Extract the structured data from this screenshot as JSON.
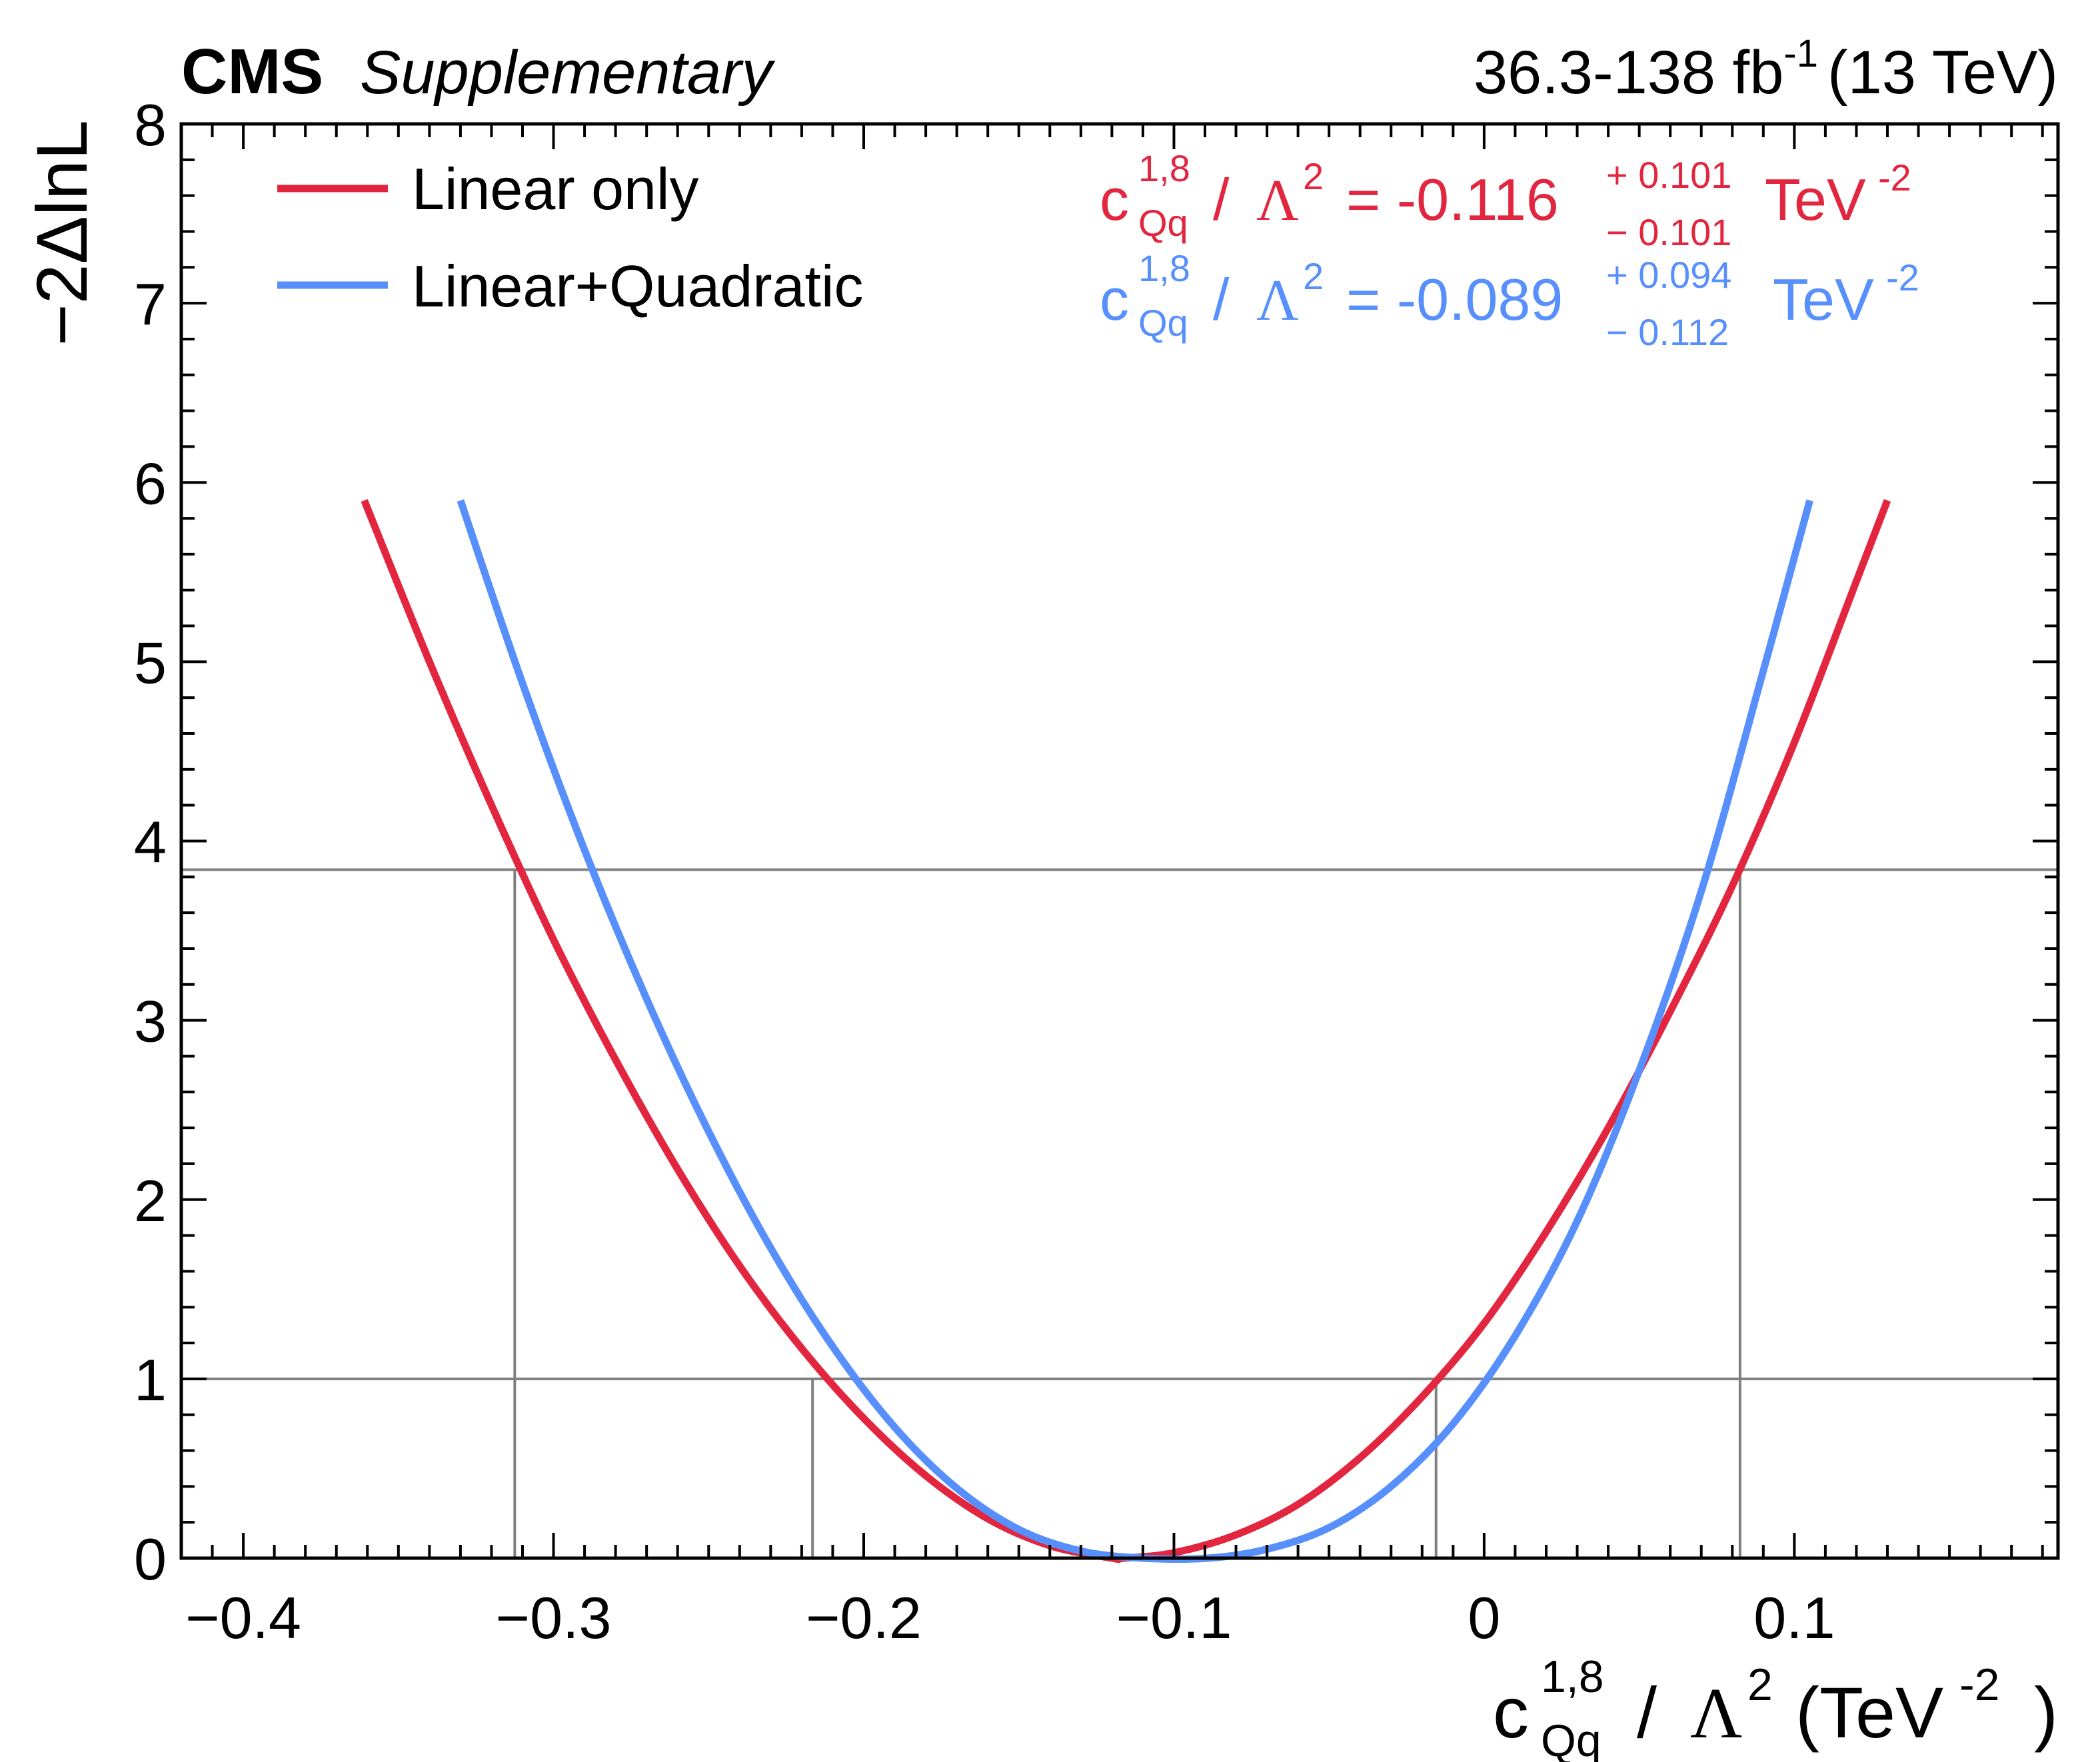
{
  "chart_data": {
    "type": "line",
    "header": {
      "experiment": "CMS",
      "tag": "Supplementary",
      "lumi_main": "36.3-138 fb",
      "lumi_exp": "-1",
      "energy": "(13 TeV)"
    },
    "ylabel": "−2ΔlnL",
    "xlabel": {
      "c": "c",
      "sup": "1,8",
      "sub": "Qq",
      "slash": "/",
      "lambda": "Λ",
      "lambda_exp": "2",
      "unit_open": "(TeV",
      "unit_exp": "-2",
      "unit_close": ")"
    },
    "xlim": [
      -0.42,
      0.185
    ],
    "ylim": [
      0,
      8
    ],
    "x_ticks": [
      {
        "v": -0.4,
        "label": "−0.4"
      },
      {
        "v": -0.3,
        "label": "−0.3"
      },
      {
        "v": -0.2,
        "label": "−0.2"
      },
      {
        "v": -0.1,
        "label": "−0.1"
      },
      {
        "v": 0.0,
        "label": "0"
      },
      {
        "v": 0.1,
        "label": "0.1"
      }
    ],
    "y_ticks": [
      {
        "v": 0,
        "label": "0"
      },
      {
        "v": 1,
        "label": "1"
      },
      {
        "v": 2,
        "label": "2"
      },
      {
        "v": 3,
        "label": "3"
      },
      {
        "v": 4,
        "label": "4"
      },
      {
        "v": 5,
        "label": "5"
      },
      {
        "v": 6,
        "label": "6"
      },
      {
        "v": 7,
        "label": "7"
      },
      {
        "v": 8,
        "label": "8"
      }
    ],
    "reference_lines": [
      1.0,
      3.84
    ],
    "interval_markers": [
      {
        "x": -0.3125,
        "y": 3.84
      },
      {
        "x": 0.0825,
        "y": 3.84
      },
      {
        "x": -0.2165,
        "y": 1.0
      },
      {
        "x": -0.0155,
        "y": 1.0
      }
    ],
    "series": [
      {
        "name": "Linear only",
        "color": "#e3263f",
        "x": [
          -0.361,
          -0.34,
          -0.32,
          -0.3,
          -0.28,
          -0.26,
          -0.24,
          -0.22,
          -0.2,
          -0.18,
          -0.16,
          -0.14,
          -0.12,
          -0.116,
          -0.1,
          -0.08,
          -0.06,
          -0.04,
          -0.02,
          0.0,
          0.02,
          0.04,
          0.06,
          0.08,
          0.1,
          0.12,
          0.13
        ],
        "y": [
          5.9,
          5.0,
          4.2,
          3.45,
          2.78,
          2.17,
          1.63,
          1.17,
          0.78,
          0.46,
          0.22,
          0.07,
          0.0,
          0.0,
          0.03,
          0.13,
          0.3,
          0.56,
          0.9,
          1.31,
          1.82,
          2.4,
          3.05,
          3.75,
          4.55,
          5.45,
          5.9
        ]
      },
      {
        "name": "Linear+Quadratic",
        "color": "#5790fc",
        "x": [
          -0.33,
          -0.31,
          -0.29,
          -0.27,
          -0.25,
          -0.23,
          -0.21,
          -0.19,
          -0.17,
          -0.15,
          -0.13,
          -0.11,
          -0.089,
          -0.07,
          -0.05,
          -0.03,
          -0.01,
          0.01,
          0.03,
          0.05,
          0.07,
          0.09,
          0.105
        ],
        "y": [
          5.9,
          4.88,
          3.95,
          3.12,
          2.38,
          1.73,
          1.18,
          0.73,
          0.39,
          0.16,
          0.04,
          0.0,
          0.0,
          0.05,
          0.17,
          0.4,
          0.75,
          1.24,
          1.88,
          2.72,
          3.72,
          4.95,
          5.9
        ]
      }
    ],
    "legend": [
      {
        "label": "Linear only",
        "color": "#e3263f"
      },
      {
        "label": "Linear+Quadratic",
        "color": "#5790fc"
      }
    ],
    "results": [
      {
        "color": "#e3263f",
        "c": "c",
        "sup": "1,8",
        "sub": "Qq",
        "slash": "/",
        "lambda": "Λ",
        "lambda_exp": "2",
        "eq": "= -0.116",
        "up": "+ 0.101",
        "down": "− 0.101",
        "unit": "TeV",
        "unit_exp": "-2"
      },
      {
        "color": "#5790fc",
        "c": "c",
        "sup": "1,8",
        "sub": "Qq",
        "slash": "/",
        "lambda": "Λ",
        "lambda_exp": "2",
        "eq": "= -0.089",
        "up": "+ 0.094",
        "down": "− 0.112",
        "unit": "TeV",
        "unit_exp": "-2"
      }
    ]
  }
}
